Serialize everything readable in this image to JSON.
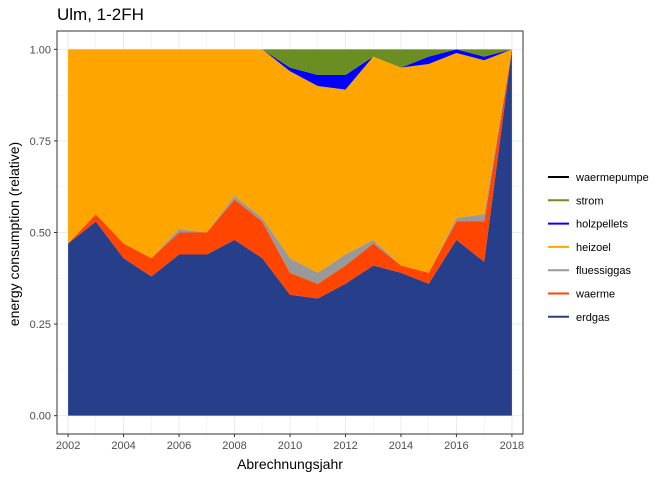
{
  "chart_data": {
    "type": "area",
    "title": "Ulm, 1-2FH",
    "xlabel": "Abrechnungsjahr",
    "ylabel": "energy consumption (relative)",
    "x": [
      2002,
      2003,
      2004,
      2005,
      2006,
      2007,
      2008,
      2009,
      2010,
      2011,
      2012,
      2013,
      2014,
      2015,
      2016,
      2017,
      2018
    ],
    "xticks": [
      "2002",
      "2004",
      "2006",
      "2008",
      "2010",
      "2012",
      "2014",
      "2016",
      "2018"
    ],
    "yticks": [
      "0.00",
      "0.25",
      "0.50",
      "0.75",
      "1.00"
    ],
    "xlim": [
      2001.6,
      2018.4
    ],
    "ylim": [
      -0.05,
      1.05
    ],
    "stacked": true,
    "grid": true,
    "legend_position": "right",
    "series": [
      {
        "name": "erdgas",
        "color": "#273f8a",
        "values": [
          0.47,
          0.53,
          0.43,
          0.38,
          0.44,
          0.44,
          0.48,
          0.43,
          0.33,
          0.32,
          0.36,
          0.41,
          0.39,
          0.36,
          0.48,
          0.42,
          1.0
        ]
      },
      {
        "name": "waerme",
        "color": "#ff4500",
        "values": [
          0.0,
          0.02,
          0.04,
          0.05,
          0.06,
          0.06,
          0.11,
          0.1,
          0.06,
          0.04,
          0.05,
          0.06,
          0.02,
          0.03,
          0.05,
          0.11,
          0.0
        ]
      },
      {
        "name": "fluessiggas",
        "color": "#999999",
        "values": [
          0.0,
          0.0,
          0.0,
          0.0,
          0.01,
          0.0,
          0.01,
          0.01,
          0.04,
          0.03,
          0.03,
          0.01,
          0.0,
          0.0,
          0.01,
          0.02,
          0.0
        ]
      },
      {
        "name": "heizoel",
        "color": "#ffa500",
        "values": [
          0.53,
          0.45,
          0.53,
          0.57,
          0.49,
          0.5,
          0.4,
          0.46,
          0.51,
          0.51,
          0.45,
          0.5,
          0.54,
          0.57,
          0.45,
          0.42,
          0.0
        ]
      },
      {
        "name": "holzpellets",
        "color": "#0000ff",
        "values": [
          0.0,
          0.0,
          0.0,
          0.0,
          0.0,
          0.0,
          0.0,
          0.0,
          0.01,
          0.03,
          0.04,
          0.0,
          0.0,
          0.02,
          0.01,
          0.01,
          0.0
        ]
      },
      {
        "name": "strom",
        "color": "#6b8e23",
        "values": [
          0.0,
          0.0,
          0.0,
          0.0,
          0.0,
          0.0,
          0.0,
          0.0,
          0.05,
          0.07,
          0.07,
          0.02,
          0.05,
          0.02,
          0.0,
          0.02,
          0.0
        ]
      },
      {
        "name": "waermepumpe",
        "color": "#000000",
        "values": [
          0.0,
          0.0,
          0.0,
          0.0,
          0.0,
          0.0,
          0.0,
          0.0,
          0.0,
          0.0,
          0.0,
          0.0,
          0.0,
          0.0,
          0.0,
          0.0,
          0.0
        ]
      }
    ],
    "legend_order": [
      "waermepumpe",
      "strom",
      "holzpellets",
      "heizoel",
      "fluessiggas",
      "waerme",
      "erdgas"
    ]
  }
}
